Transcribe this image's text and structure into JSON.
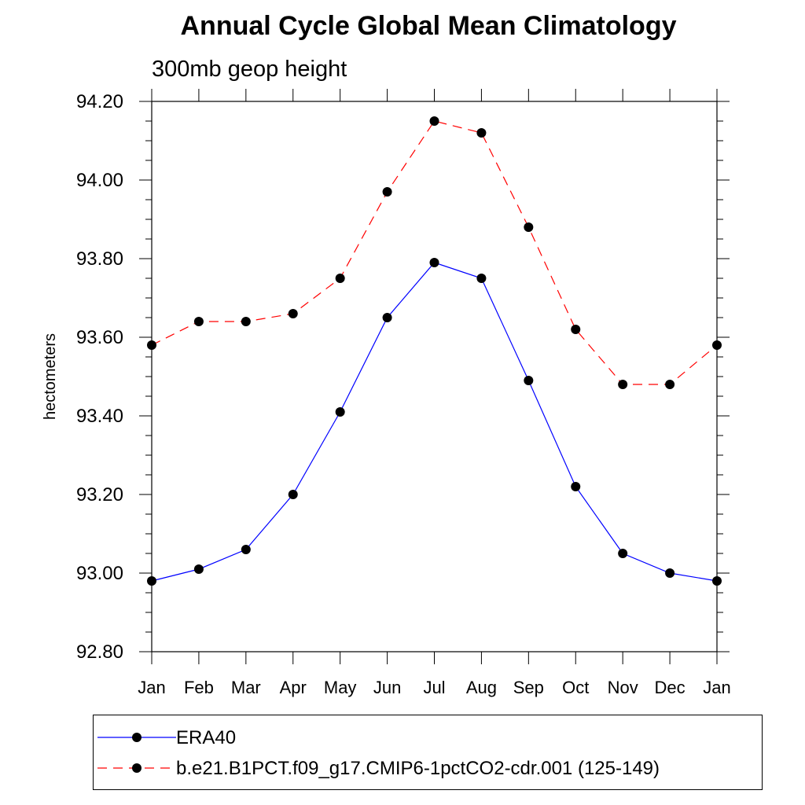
{
  "chart_data": {
    "type": "line",
    "title": "Annual Cycle Global Mean Climatology",
    "subtitle": "300mb geop height",
    "xlabel": "",
    "ylabel": "hectometers",
    "categories": [
      "Jan",
      "Feb",
      "Mar",
      "Apr",
      "May",
      "Jun",
      "Jul",
      "Aug",
      "Sep",
      "Oct",
      "Nov",
      "Dec",
      "Jan"
    ],
    "ylim": [
      92.8,
      94.2
    ],
    "yticks": [
      "92.80",
      "93.00",
      "93.20",
      "93.40",
      "93.60",
      "93.80",
      "94.00",
      "94.20"
    ],
    "legend_position": "bottom",
    "series": [
      {
        "name": "ERA40",
        "color": "#0000ff",
        "dash": "solid",
        "values": [
          92.98,
          93.01,
          93.06,
          93.2,
          93.41,
          93.65,
          93.79,
          93.75,
          93.49,
          93.22,
          93.05,
          93.0,
          92.98
        ]
      },
      {
        "name": "b.e21.B1PCT.f09_g17.CMIP6-1pctCO2-cdr.001 (125-149)",
        "color": "#ff0000",
        "dash": "dashed",
        "values": [
          93.58,
          93.64,
          93.64,
          93.66,
          93.75,
          93.97,
          94.15,
          94.12,
          93.88,
          93.62,
          93.48,
          93.48,
          93.58
        ]
      }
    ]
  }
}
